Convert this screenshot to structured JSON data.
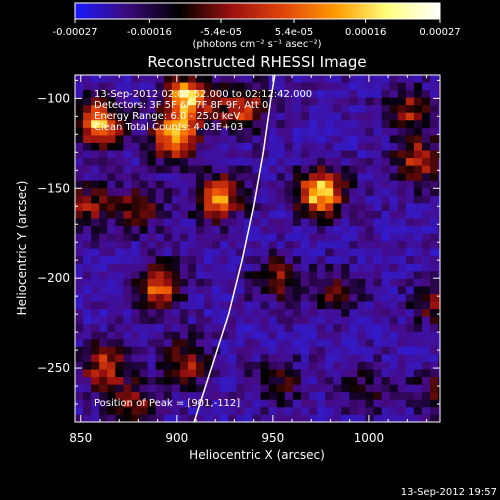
{
  "colorbar": {
    "tick_labels": [
      "-0.00027",
      "-0.00016",
      "-5.4e-05",
      "5.4e-05",
      "0.00016",
      "0.00027"
    ],
    "tick_values": [
      -0.00027,
      -0.00016,
      -5.4e-05,
      5.4e-05,
      0.00016,
      0.00027
    ],
    "range": [
      -0.00027,
      0.00027
    ],
    "units_label": "(photons cm⁻² s⁻¹ asec⁻²)",
    "colors": [
      "#1a1aff",
      "#3a0a7a",
      "#000000",
      "#9b1010",
      "#e0450a",
      "#ff9a00",
      "#ffff80",
      "#ffffff"
    ]
  },
  "annotations": {
    "time_range": "13-Sep-2012 02:07:52.000 to 02:12:42.000",
    "detectors": "Detectors: 3F 5F 6F 7F 8F 9F, Att 0",
    "energy_range": "Energy Range: 6.0 - 25.0 keV",
    "clean_counts": "Clean    Total Counts: 4.03E+03",
    "peak_position": "Position of Peak = [901,-112]"
  },
  "footer": {
    "timestamp": "13-Sep-2012 19:57"
  },
  "chart_data": {
    "type": "heatmap",
    "title": "Reconstructed RHESSI Image",
    "xlabel": "Heliocentric X (arcsec)",
    "ylabel": "Heliocentric Y (arcsec)",
    "xlim": [
      847,
      1037
    ],
    "ylim": [
      -280,
      -87
    ],
    "x_ticks": [
      850,
      900,
      950,
      1000
    ],
    "y_ticks": [
      -100,
      -150,
      -200,
      -250
    ],
    "x_tick_labels": [
      "850",
      "900",
      "950",
      "1000"
    ],
    "y_tick_labels": [
      "−100",
      "−150",
      "−200",
      "−250"
    ],
    "limb_curve": [
      [
        909,
        -280
      ],
      [
        918,
        -250
      ],
      [
        927,
        -220
      ],
      [
        934,
        -190
      ],
      [
        940,
        -160
      ],
      [
        945,
        -130
      ],
      [
        949,
        -100
      ],
      [
        951,
        -87
      ]
    ],
    "sources": [
      {
        "x": 857,
        "y": -112,
        "flux": 0.00024
      },
      {
        "x": 903,
        "y": -98,
        "flux": 0.00026
      },
      {
        "x": 897,
        "y": -120,
        "flux": 0.00022
      },
      {
        "x": 932,
        "y": -103,
        "flux": 0.00018
      },
      {
        "x": 920,
        "y": -153,
        "flux": 0.00021
      },
      {
        "x": 973,
        "y": -150,
        "flux": 0.00027
      },
      {
        "x": 1024,
        "y": -133,
        "flux": 0.00016
      },
      {
        "x": 1019,
        "y": -105,
        "flux": 0.00014
      },
      {
        "x": 852,
        "y": -158,
        "flux": 0.00013
      },
      {
        "x": 878,
        "y": -158,
        "flux": 0.00012
      },
      {
        "x": 888,
        "y": -203,
        "flux": 0.00019
      },
      {
        "x": 950,
        "y": -198,
        "flux": 0.00012
      },
      {
        "x": 980,
        "y": -206,
        "flux": 0.0001
      },
      {
        "x": 860,
        "y": -247,
        "flux": 0.00016
      },
      {
        "x": 902,
        "y": -245,
        "flux": 0.00014
      },
      {
        "x": 950,
        "y": -255,
        "flux": 0.0001
      },
      {
        "x": 1033,
        "y": -212,
        "flux": 0.00011
      },
      {
        "x": 1033,
        "y": -260,
        "flux": 9e-05
      },
      {
        "x": 875,
        "y": -268,
        "flux": 0.00012
      },
      {
        "x": 995,
        "y": -260,
        "flux": 8e-05
      }
    ]
  }
}
